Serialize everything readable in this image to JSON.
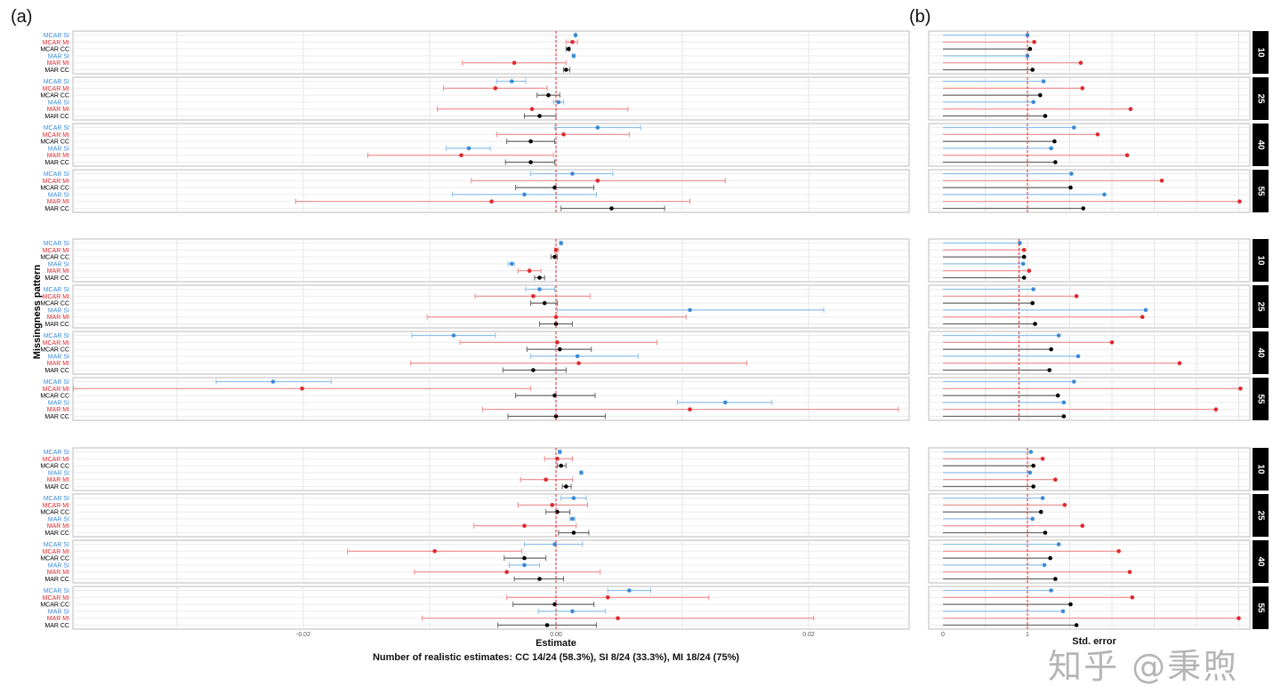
{
  "labels": {
    "panel_a": "(a)",
    "panel_b": "(b)",
    "watermark": "知乎 @秉煦"
  },
  "chart_data": {
    "type": "forest",
    "panel_a": {
      "xlabel": "Estimate",
      "caption": "Number of realistic estimates: CC 14/24 (58.3%), SI 8/24 (33.3%), MI 18/24 (75%)",
      "ylabel": "Missingness pattern",
      "xlim": [
        -0.038,
        0.028
      ],
      "ticks": [
        -0.02,
        0.0,
        0.02
      ],
      "tick_labels": [
        "-0.02",
        "0.00",
        "0.02"
      ],
      "reference": 0
    },
    "panel_b": {
      "xlabel": "Std. error",
      "xlim": [
        0,
        3.6
      ],
      "ticks": [
        0,
        1
      ],
      "tick_labels": [
        "0",
        "1"
      ]
    },
    "grid": true,
    "rows": [
      "MCAR SI",
      "MCAR MI",
      "MCAR CC",
      "MAR SI",
      "MAR MI",
      "MAR CC"
    ],
    "row_colors": [
      "#3b8ad6",
      "#e0282e",
      "#000000",
      "#3b8ad6",
      "#e0282e",
      "#000000"
    ],
    "groups": [
      {
        "se_reference": 1.0,
        "facets": [
          {
            "label": "10",
            "estimate": [
              0.00155,
              0.0013,
              0.001,
              0.0014,
              -0.0033,
              0.0008
            ],
            "lower": [
              0.0015,
              0.0008,
              0.0008,
              0.0013,
              -0.0074,
              0.0006
            ],
            "upper": [
              0.0016,
              0.0017,
              0.0011,
              0.0015,
              0.0008,
              0.0011
            ],
            "se": [
              1.0,
              1.08,
              1.03,
              1.0,
              1.63,
              1.06
            ]
          },
          {
            "label": "25",
            "estimate": [
              -0.0035,
              -0.0048,
              -0.0006,
              0.0002,
              -0.0019,
              -0.0013
            ],
            "lower": [
              -0.0047,
              -0.0089,
              -0.0015,
              -0.0002,
              -0.0094,
              -0.0025
            ],
            "upper": [
              -0.0024,
              -0.0007,
              0.0003,
              0.0006,
              0.0057,
              0.0
            ],
            "se": [
              1.19,
              1.65,
              1.15,
              1.07,
              2.22,
              1.21
            ]
          },
          {
            "label": "40",
            "estimate": [
              0.0033,
              0.0006,
              -0.002,
              -0.0069,
              -0.0075,
              -0.002
            ],
            "lower": [
              -0.0001,
              -0.0047,
              -0.0039,
              -0.0087,
              -0.0149,
              -0.004
            ],
            "upper": [
              0.0067,
              0.0058,
              -0.0001,
              -0.0052,
              -0.0002,
              -0.0001
            ],
            "se": [
              1.55,
              1.83,
              1.32,
              1.28,
              2.18,
              1.33
            ]
          },
          {
            "label": "55",
            "estimate": [
              0.0013,
              0.0033,
              -0.0001,
              -0.0025,
              -0.0051,
              0.0044
            ],
            "lower": [
              -0.002,
              -0.0067,
              -0.0032,
              -0.0082,
              -0.0206,
              0.0004
            ],
            "upper": [
              0.0045,
              0.0134,
              0.003,
              0.0032,
              0.0106,
              0.0086
            ],
            "se": [
              1.52,
              2.59,
              1.51,
              1.91,
              3.51,
              1.66
            ]
          }
        ]
      },
      {
        "se_reference": 0.9,
        "facets": [
          {
            "label": "10",
            "estimate": [
              0.0004,
              0.0,
              -0.0001,
              -0.0035,
              -0.0021,
              -0.0013
            ],
            "lower": [
              0.0003,
              -0.0001,
              -0.0004,
              -0.0038,
              -0.003,
              -0.0017
            ],
            "upper": [
              0.0005,
              0.0002,
              0.0001,
              -0.0033,
              -0.0012,
              -0.0009
            ],
            "se": [
              0.91,
              0.96,
              0.96,
              0.95,
              1.02,
              0.96
            ]
          },
          {
            "label": "25",
            "estimate": [
              -0.0013,
              -0.0018,
              -0.0009,
              0.0106,
              0.0,
              0.0
            ],
            "lower": [
              -0.0024,
              -0.0064,
              -0.002,
              0.0001,
              -0.0102,
              -0.0013
            ],
            "upper": [
              -0.0001,
              0.0027,
              0.0001,
              0.0212,
              0.0103,
              0.0013
            ],
            "se": [
              1.07,
              1.58,
              1.06,
              2.4,
              2.36,
              1.09
            ]
          },
          {
            "label": "40",
            "estimate": [
              -0.0081,
              0.0001,
              0.0003,
              0.0017,
              0.0018,
              -0.0018
            ],
            "lower": [
              -0.0114,
              -0.0076,
              -0.0023,
              -0.002,
              -0.0115,
              -0.0042
            ],
            "upper": [
              -0.0048,
              0.008,
              0.0028,
              0.0065,
              0.0151,
              0.0008
            ],
            "se": [
              1.37,
              2.0,
              1.28,
              1.6,
              2.8,
              1.26
            ]
          },
          {
            "label": "55",
            "estimate": [
              -0.0224,
              -0.0201,
              -0.0001,
              0.0134,
              0.0106,
              0.0
            ],
            "lower": [
              -0.0269,
              -0.0382,
              -0.0032,
              0.0096,
              -0.0058,
              -0.0038
            ],
            "upper": [
              -0.0178,
              -0.002,
              0.0031,
              0.0171,
              0.0271,
              0.0039
            ],
            "se": [
              1.55,
              3.52,
              1.36,
              1.43,
              3.23,
              1.43
            ]
          }
        ]
      },
      {
        "se_reference": 1.0,
        "facets": [
          {
            "label": "10",
            "estimate": [
              0.0003,
              0.0001,
              0.0004,
              0.002,
              -0.0008,
              0.0008
            ],
            "lower": [
              0.0002,
              -0.0009,
              0.0001,
              0.0019,
              -0.0028,
              0.0005
            ],
            "upper": [
              0.0004,
              0.0013,
              0.0008,
              0.0021,
              0.0013,
              0.0012
            ],
            "se": [
              1.04,
              1.18,
              1.07,
              1.03,
              1.33,
              1.07
            ]
          },
          {
            "label": "25",
            "estimate": [
              0.0014,
              -0.0003,
              0.0001,
              0.0013,
              -0.0025,
              0.0014
            ],
            "lower": [
              0.0004,
              -0.003,
              -0.0008,
              0.0011,
              -0.0065,
              0.0002
            ],
            "upper": [
              0.0024,
              0.0025,
              0.0011,
              0.0015,
              0.0016,
              0.0026
            ],
            "se": [
              1.18,
              1.44,
              1.16,
              1.06,
              1.65,
              1.21
            ]
          },
          {
            "label": "40",
            "estimate": [
              -0.0001,
              -0.0096,
              -0.0025,
              -0.0025,
              -0.0039,
              -0.0013
            ],
            "lower": [
              -0.0025,
              -0.0165,
              -0.0041,
              -0.0037,
              -0.0112,
              -0.0033
            ],
            "upper": [
              0.0021,
              -0.0027,
              -0.0008,
              -0.0013,
              0.0035,
              0.0006
            ],
            "se": [
              1.37,
              2.08,
              1.27,
              1.2,
              2.21,
              1.33
            ]
          },
          {
            "label": "55",
            "estimate": [
              0.0058,
              0.0041,
              -0.0001,
              0.0013,
              0.0049,
              -0.0007
            ],
            "lower": [
              0.0041,
              -0.0039,
              -0.0034,
              -0.0014,
              -0.0106,
              -0.0046
            ],
            "upper": [
              0.0075,
              0.0121,
              0.003,
              0.0039,
              0.0204,
              0.0032
            ],
            "se": [
              1.28,
              2.24,
              1.51,
              1.42,
              3.5,
              1.58
            ]
          }
        ]
      }
    ]
  }
}
